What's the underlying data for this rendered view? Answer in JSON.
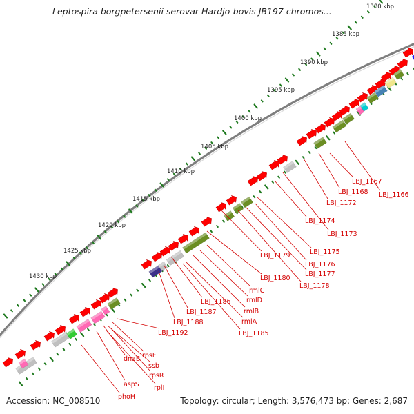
{
  "title": "Leptospira borgpetersenii serovar Hardjo-bovis JB197 chromos...",
  "footer": {
    "accession": "Accession: NC_008510",
    "summary": "Topology: circular; Length: 3,576,473 bp; Genes: 2,687"
  },
  "colors": {
    "cds_forward": "#ff0000",
    "backbone": "#7f7f7f",
    "ticks": "#1f7a1f",
    "labels": "#d40000",
    "category_green": "#6b8e23",
    "category_purple": "#3b2f8a",
    "category_grey": "#c0c0c0",
    "category_pink": "#ff69b4",
    "category_bright_green": "#33cc33",
    "category_blue": "#4682b4",
    "category_cyan": "#00ced1",
    "category_yellow": "#f0e68c"
  },
  "kbp_labels": [
    "1380 kbp",
    "1385 kbp",
    "1390 kbp",
    "1395 kbp",
    "1400 kbp",
    "1405 kbp",
    "1410 kbp",
    "1415 kbp",
    "1420 kbp",
    "1425 kbp",
    "1430 kbp"
  ],
  "gene_labels": [
    "LBJ_1167",
    "LBJ_1166",
    "LBJ_1168",
    "LBJ_1172",
    "LBJ_1174",
    "LBJ_1173",
    "LBJ_1175",
    "LBJ_1179",
    "LBJ_1176",
    "LBJ_1180",
    "LBJ_1177",
    "LBJ_1178",
    "rmlC",
    "rmlD",
    "LBJ_1186",
    "rmlB",
    "LBJ_1187",
    "LBJ_1188",
    "rmlA",
    "LBJ_1185",
    "LBJ_1192",
    "rpsF",
    "dnaB",
    "ssb",
    "rpsR",
    "aspS",
    "rplI",
    "phoH"
  ]
}
